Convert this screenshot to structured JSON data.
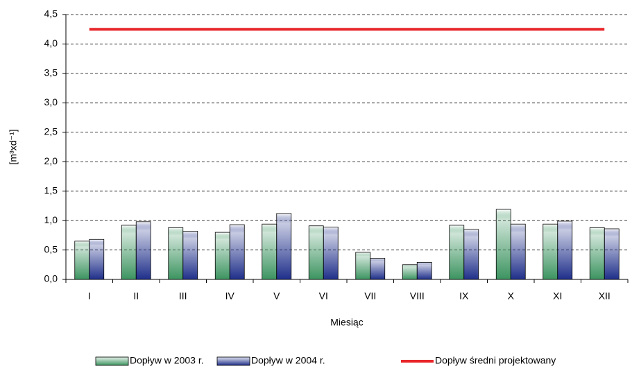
{
  "chart_data": {
    "type": "bar",
    "y_label": "[m³xd⁻¹]",
    "x_label": "Miesiąc",
    "categories": [
      "I",
      "II",
      "III",
      "IV",
      "V",
      "VI",
      "VII",
      "VIII",
      "IX",
      "X",
      "XI",
      "XII"
    ],
    "series": [
      {
        "name": "Dopływ w 2003 r.",
        "color": "#3c9460",
        "values": [
          0.65,
          0.92,
          0.88,
          0.8,
          0.94,
          0.91,
          0.46,
          0.25,
          0.92,
          1.19,
          0.94,
          0.88
        ]
      },
      {
        "name": "Dopływ w 2004 r.",
        "color": "#1f2f8a",
        "values": [
          0.68,
          0.98,
          0.82,
          0.93,
          1.12,
          0.89,
          0.36,
          0.29,
          0.85,
          0.94,
          0.99,
          0.86
        ]
      },
      {
        "name": "Dopływ średni projektowany",
        "type": "line",
        "color": "#e8262a",
        "values": [
          4.25,
          4.25,
          4.25,
          4.25,
          4.25,
          4.25,
          4.25,
          4.25,
          4.25,
          4.25,
          4.25,
          4.25
        ]
      }
    ],
    "ylim": [
      0,
      4.5
    ],
    "yticks": [
      {
        "value": 0,
        "label": "0,0"
      },
      {
        "value": 0.5,
        "label": "0,5"
      },
      {
        "value": 1,
        "label": "1,0"
      },
      {
        "value": 1.5,
        "label": "1,5"
      },
      {
        "value": 2,
        "label": "2,0"
      },
      {
        "value": 2.5,
        "label": "2,5"
      },
      {
        "value": 3,
        "label": "3,0"
      },
      {
        "value": 3.5,
        "label": "3,5"
      },
      {
        "value": 4,
        "label": "4,0"
      },
      {
        "value": 4.5,
        "label": "4,5"
      }
    ],
    "grid": true,
    "legend": "bottom"
  }
}
